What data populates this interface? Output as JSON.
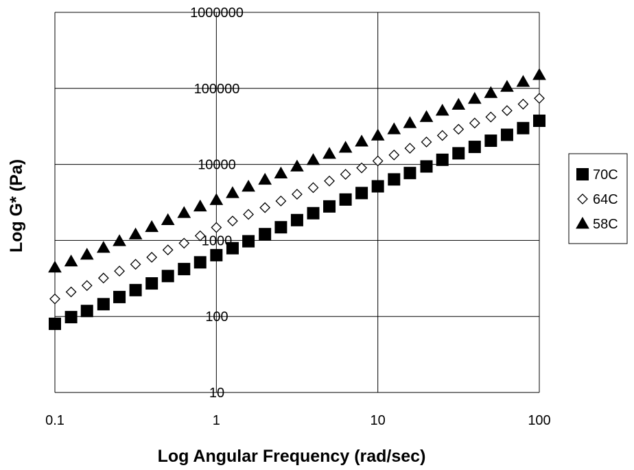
{
  "chart_data": {
    "type": "scatter",
    "xlabel": "Log Angular Frequency (rad/sec)",
    "ylabel": "Log G* (Pa)",
    "x_scale": "log",
    "y_scale": "log",
    "xlim": [
      0.1,
      100
    ],
    "ylim": [
      10,
      1000000
    ],
    "x_ticks": [
      0.1,
      1,
      10,
      100
    ],
    "x_tick_labels": [
      "0.1",
      "1",
      "10",
      "100"
    ],
    "y_ticks": [
      10,
      100,
      1000,
      10000,
      100000,
      1000000
    ],
    "y_tick_labels": [
      "10",
      "100",
      "1000",
      "10000",
      "100000",
      "1000000"
    ],
    "grid": "major, both axes",
    "legend_position": "right",
    "x": [
      0.1,
      0.126,
      0.158,
      0.2,
      0.251,
      0.316,
      0.398,
      0.501,
      0.631,
      0.794,
      1,
      1.26,
      1.58,
      2,
      2.51,
      3.16,
      3.98,
      5.01,
      6.31,
      7.94,
      10,
      12.6,
      15.8,
      20,
      25.1,
      31.6,
      39.8,
      50.1,
      63.1,
      79.4,
      100
    ],
    "series": [
      {
        "name": "70C",
        "marker": "square",
        "filled": true,
        "color": "#000000",
        "values": [
          80,
          98,
          118,
          145,
          180,
          222,
          272,
          340,
          420,
          515,
          640,
          790,
          975,
          1210,
          1490,
          1850,
          2280,
          2800,
          3450,
          4200,
          5150,
          6350,
          7700,
          9400,
          11500,
          14000,
          17000,
          20500,
          24500,
          30000,
          37500
        ]
      },
      {
        "name": "64C",
        "marker": "diamond",
        "filled": false,
        "color": "#000000",
        "values": [
          170,
          210,
          255,
          320,
          395,
          485,
          600,
          750,
          920,
          1150,
          1480,
          1800,
          2200,
          2700,
          3300,
          4050,
          4950,
          6050,
          7400,
          9000,
          11100,
          13300,
          16300,
          19700,
          24000,
          29000,
          35000,
          42000,
          51000,
          62000,
          74000
        ]
      },
      {
        "name": "58C",
        "marker": "triangle",
        "filled": true,
        "color": "#000000",
        "values": [
          440,
          530,
          650,
          800,
          980,
          1200,
          1500,
          1850,
          2300,
          2800,
          3400,
          4200,
          5100,
          6300,
          7600,
          9400,
          11400,
          13800,
          16600,
          20000,
          24000,
          29000,
          35000,
          42000,
          51000,
          61000,
          73000,
          87000,
          105000,
          122000,
          150000
        ]
      }
    ]
  }
}
